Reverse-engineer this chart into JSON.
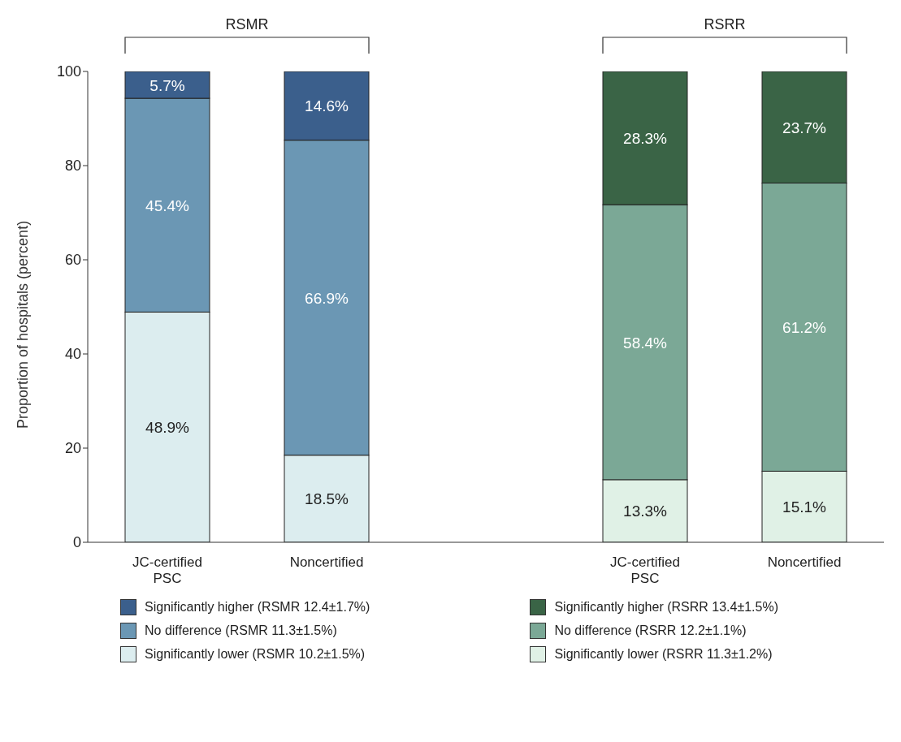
{
  "chart_data": {
    "type": "bar",
    "stacked": true,
    "ylabel": "Proportion of hospitals (percent)",
    "categories": [
      "JC-certified PSC",
      "Noncertified",
      null,
      "JC-certified PSC",
      "Noncertified"
    ],
    "ylim": [
      0,
      100
    ],
    "yticks": [
      0,
      20,
      40,
      60,
      80,
      100
    ],
    "grid": false,
    "legend": "bottom",
    "annotations": [
      "RSMR",
      "RSRR"
    ],
    "series": [
      {
        "name": "Significantly lower (RSMR 10.2±1.5%)",
        "color": "#dcedef",
        "values": [
          48.9,
          18.5,
          null,
          null,
          null
        ],
        "value_labels": [
          "48.9%",
          "18.5%",
          null,
          null,
          null
        ]
      },
      {
        "name": "No difference (RSMR 11.3±1.5%)",
        "color": "#6b97b4",
        "values": [
          45.4,
          66.9,
          null,
          null,
          null
        ],
        "value_labels": [
          "45.4%",
          "66.9%",
          null,
          null,
          null
        ]
      },
      {
        "name": "Significantly higher (RSMR 12.4±1.7%)",
        "color": "#3b5f8c",
        "values": [
          5.7,
          14.6,
          null,
          null,
          null
        ],
        "value_labels": [
          "5.7%",
          "14.6%",
          null,
          null,
          null
        ]
      },
      {
        "name": "Significantly lower (RSRR 11.3±1.2%)",
        "color": "#e0f1e6",
        "values": [
          null,
          null,
          null,
          13.3,
          15.1
        ],
        "value_labels": [
          null,
          null,
          null,
          "13.3%",
          "15.1%"
        ]
      },
      {
        "name": "No difference (RSRR 12.2±1.1%)",
        "color": "#7ba896",
        "values": [
          null,
          null,
          null,
          58.4,
          61.2
        ],
        "value_labels": [
          null,
          null,
          null,
          "58.4%",
          "61.2%"
        ]
      },
      {
        "name": "Significantly higher (RSRR 13.4±1.5%)",
        "color": "#3a6446",
        "values": [
          null,
          null,
          null,
          28.3,
          23.7
        ],
        "value_labels": [
          null,
          null,
          null,
          "28.3%",
          "23.7%"
        ]
      }
    ]
  }
}
